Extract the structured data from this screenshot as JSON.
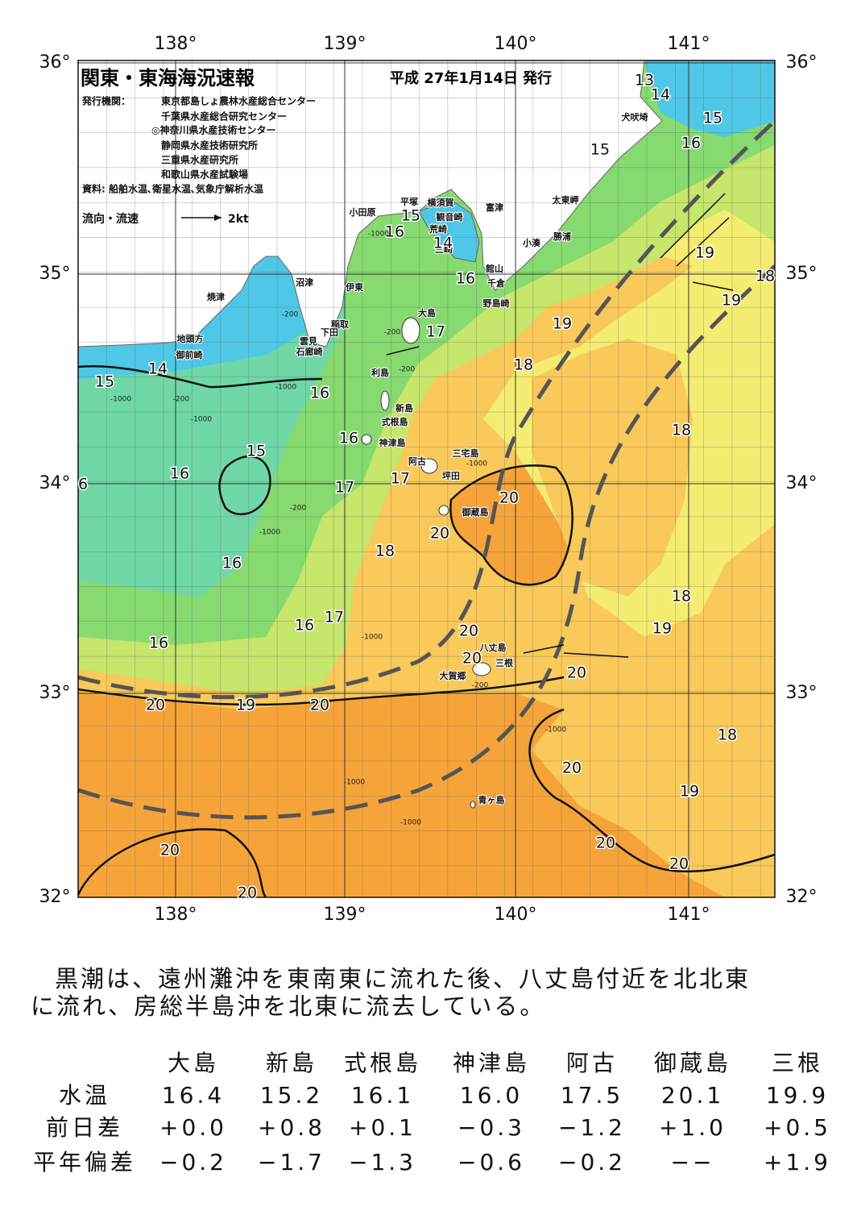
{
  "header": {
    "title": "関東・東海海況速報",
    "date": "平成 27年1月14日 発行",
    "agencies_label": "発行機関：",
    "agencies": [
      "東京都島しょ農林水産総合センター",
      "千葉県水産総合研究センター",
      "◎神奈川県水産技術センター",
      "静岡県水産技術研究所",
      "三重県水産研究所",
      "和歌山県水産試験場"
    ],
    "source": "資料: 船舶水温､衛星水温､気象庁解析水温"
  },
  "legend": {
    "label": "流向・流速",
    "scale": "2kt"
  },
  "axes": {
    "lon_labels": [
      "138°",
      "139°",
      "140°",
      "141°"
    ],
    "lat_labels": [
      "36°",
      "35°",
      "34°",
      "33°",
      "32°"
    ]
  },
  "places": [
    "小田原",
    "平塚",
    "横須賀",
    "観音崎",
    "富津",
    "荒崎",
    "三崎",
    "太東岬",
    "勝浦",
    "小湊",
    "館山",
    "千倉",
    "野島崎",
    "犬吠埼",
    "沼津",
    "伊東",
    "焼津",
    "稲取",
    "下田",
    "雲見",
    "石廊崎",
    "地頭方",
    "御前崎",
    "大島",
    "利島",
    "新島",
    "式根島",
    "神津島",
    "三宅島",
    "阿古",
    "坪田",
    "御蔵島",
    "八丈島",
    "三根",
    "大賀郷",
    "青ヶ島"
  ],
  "contour_labels": [
    "13",
    "14",
    "15",
    "16",
    "15",
    "15",
    "16",
    "14",
    "16",
    "17",
    "19",
    "19",
    "19",
    "18",
    "18",
    "16",
    "15",
    "14",
    "16",
    "15",
    "16",
    "17",
    "17",
    "20",
    "20",
    "18",
    "18",
    "16",
    "18",
    "19",
    "16",
    "17",
    "16",
    "20",
    "20",
    "20",
    "20",
    "19",
    "20",
    "18",
    "20",
    "19",
    "20",
    "20",
    "20",
    "20",
    "6"
  ],
  "depth_labels": [
    "-1000",
    "-200",
    "-200",
    "-1000",
    "-200",
    "-1000",
    "-200",
    "-1000",
    "-1000",
    "-200",
    "-1000",
    "-1000",
    "-1000",
    "-1000",
    "-200",
    "-1000"
  ],
  "summary": {
    "lines": [
      "黒潮は、遠州灘沖を東南東に流れた後、八丈島付近を北北東",
      "に流れ、房総半島沖を北東に流去している。"
    ]
  },
  "table": {
    "columns": [
      "大島",
      "新島",
      "式根島",
      "神津島",
      "阿古",
      "御蔵島",
      "三根"
    ],
    "rows": [
      {
        "label": "水温",
        "values": [
          "16.4",
          "15.2",
          "16.1",
          "16.0",
          "17.5",
          "20.1",
          "19.9"
        ]
      },
      {
        "label": "前日差",
        "values": [
          "+0.0",
          "+0.8",
          "+0.1",
          "−0.3",
          "−1.2",
          "+1.0",
          "+0.5"
        ]
      },
      {
        "label": "平年偏差",
        "values": [
          "−0.2",
          "−1.7",
          "−1.3",
          "−0.6",
          "−0.2",
          "−−",
          "+1.9"
        ]
      }
    ]
  }
}
